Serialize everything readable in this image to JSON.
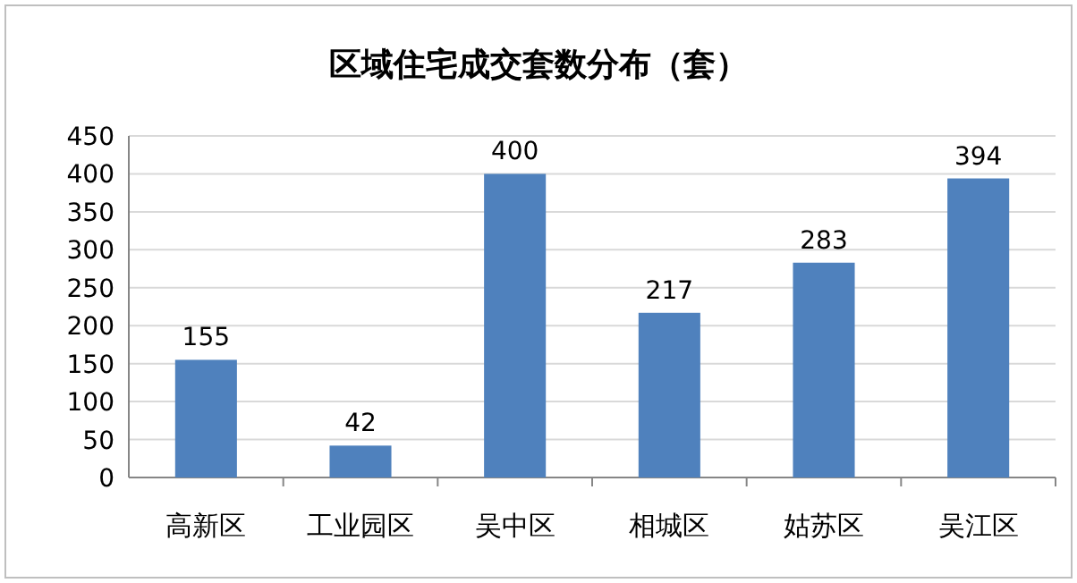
{
  "chart_data": {
    "type": "bar",
    "title": "区域住宅成交套数分布（套）",
    "categories": [
      "高新区",
      "工业园区",
      "吴中区",
      "相城区",
      "姑苏区",
      "吴江区"
    ],
    "values": [
      155,
      42,
      400,
      217,
      283,
      394
    ],
    "color": "#4f81bd",
    "ylim": [
      0,
      450
    ],
    "yticks": [
      0,
      50,
      100,
      150,
      200,
      250,
      300,
      350,
      400,
      450
    ],
    "grid": "y",
    "data_labels": true
  }
}
